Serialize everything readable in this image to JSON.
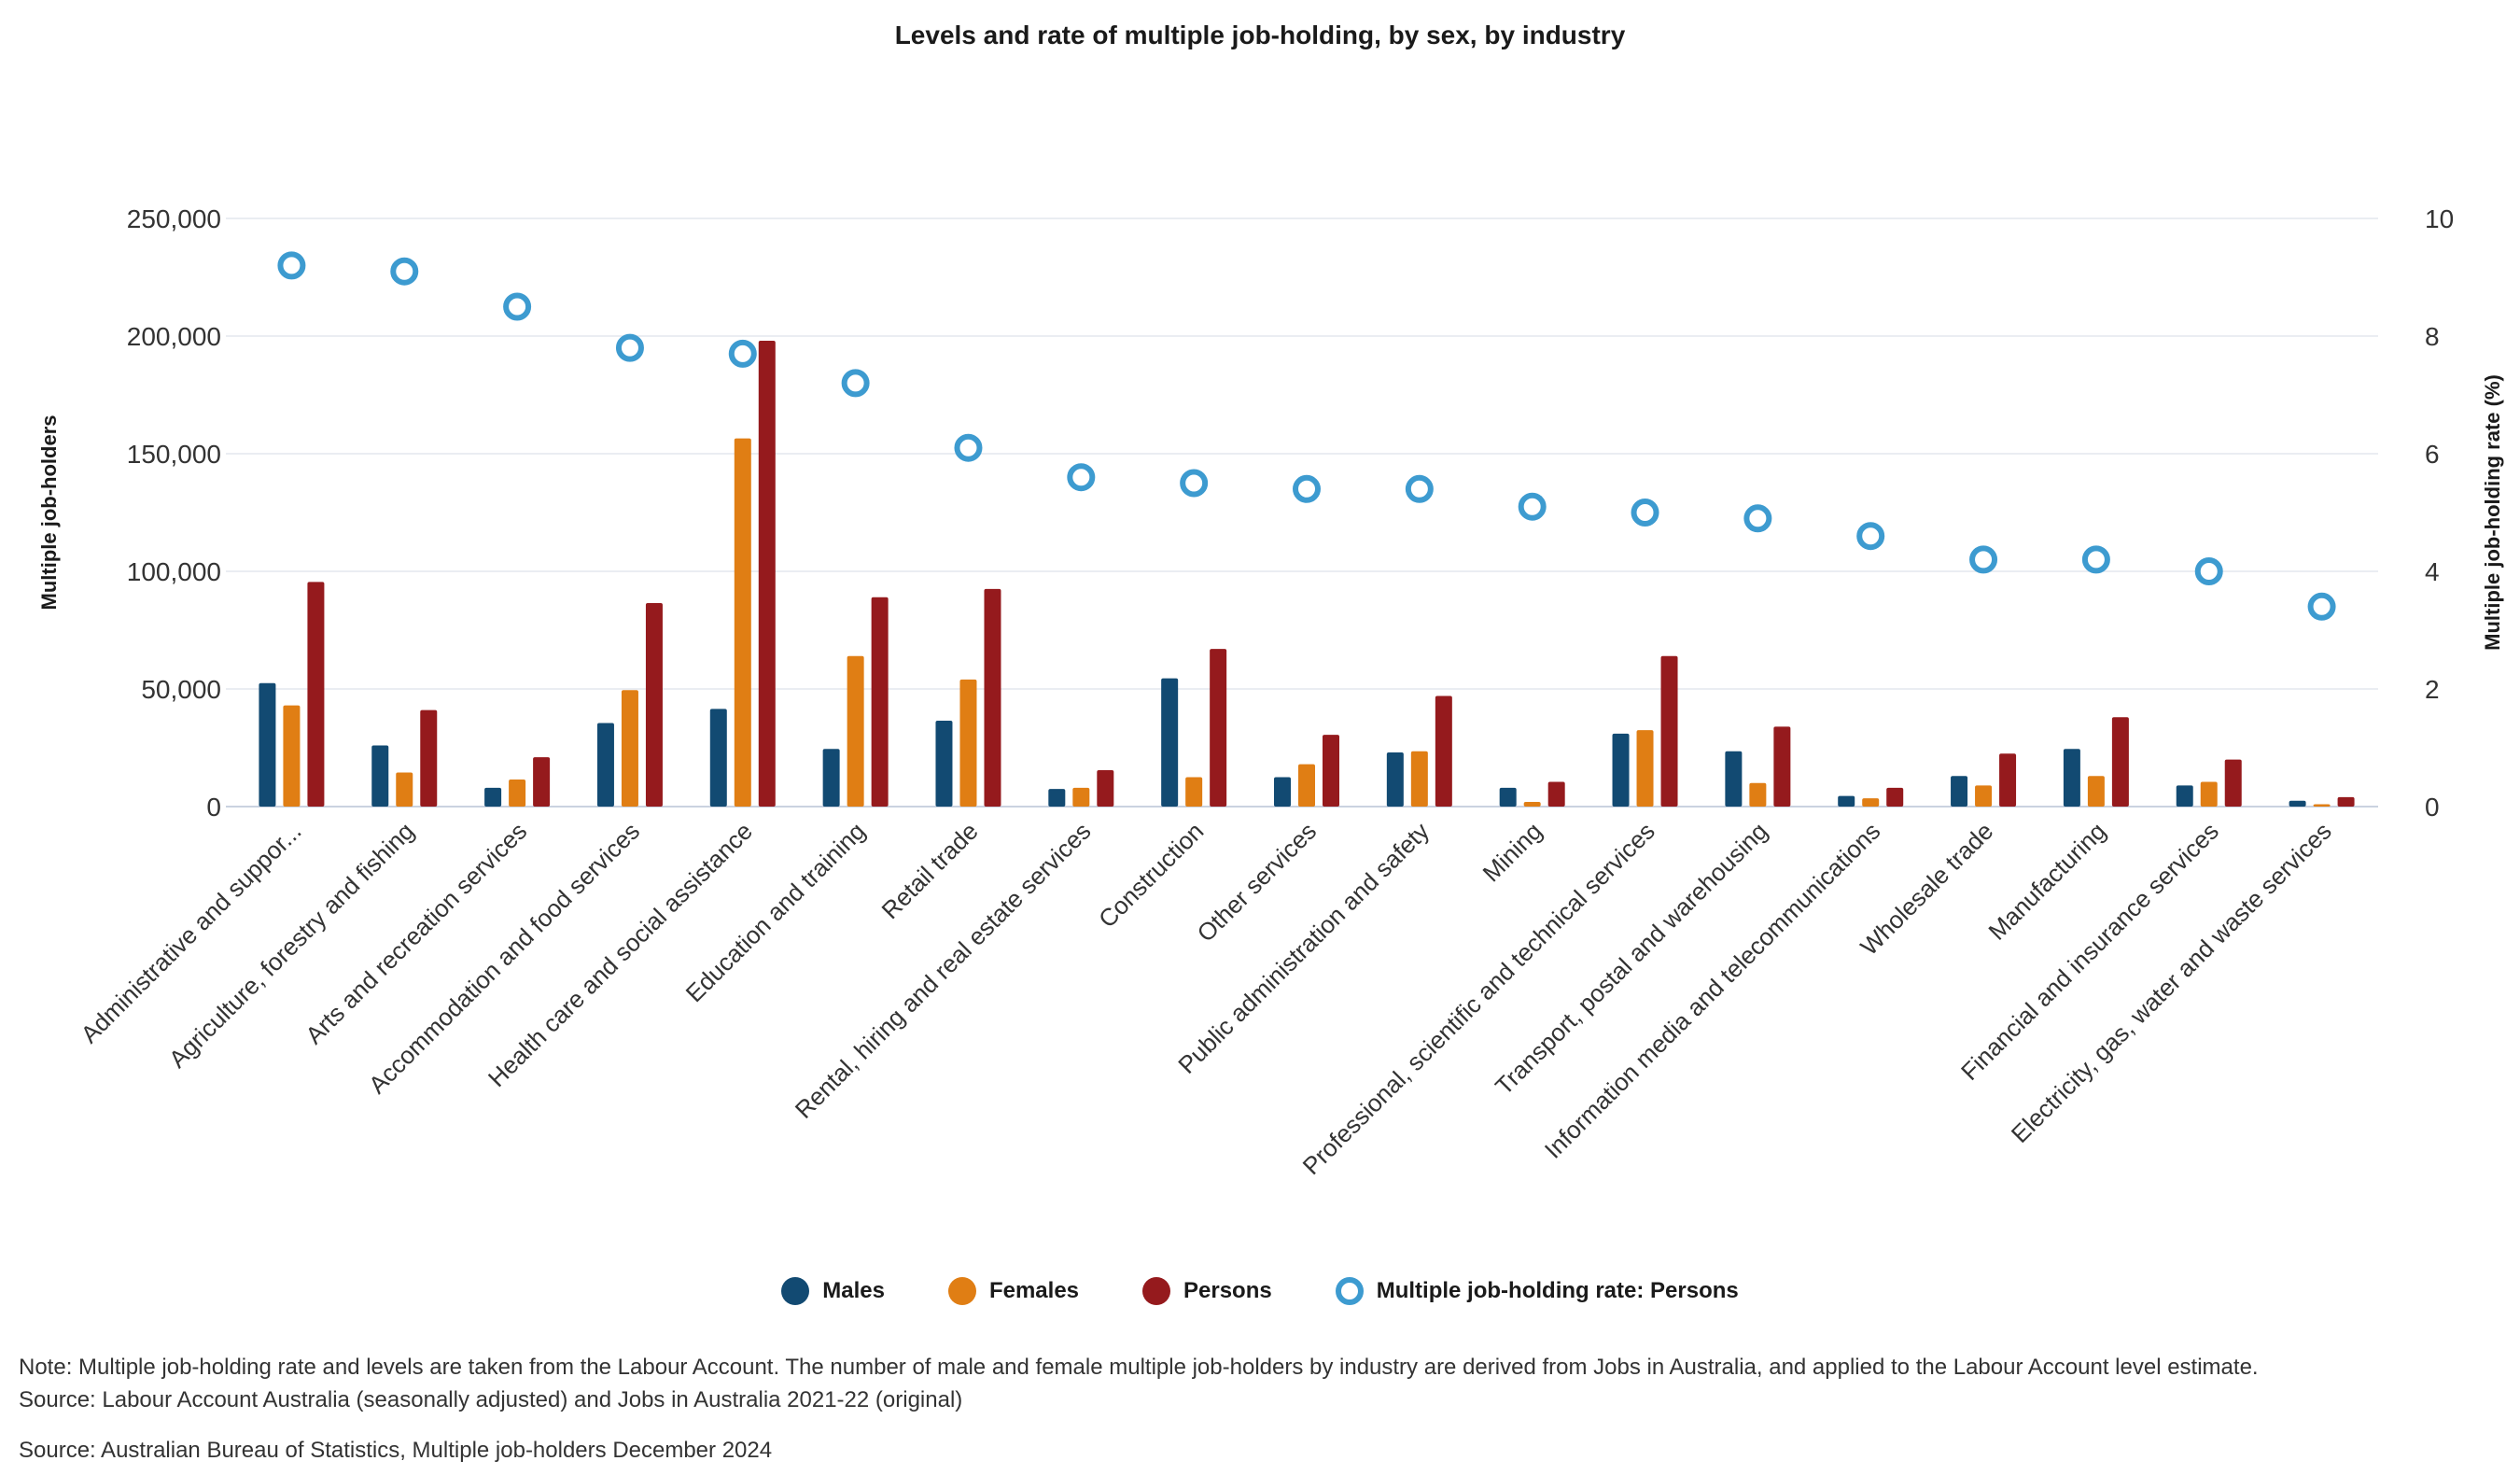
{
  "chart_data": {
    "type": "bar",
    "title": "Levels and rate of multiple job-holding, by sex, by industry",
    "ylabel": "Multiple job-holders",
    "y2label": "Multiple job-holding rate (%)",
    "ylim": [
      0,
      250000
    ],
    "y2lim": [
      0,
      10
    ],
    "yticks": [
      "0",
      "50,000",
      "100,000",
      "150,000",
      "200,000",
      "250,000"
    ],
    "y2ticks": [
      "0",
      "2",
      "4",
      "6",
      "8",
      "10"
    ],
    "grid": true,
    "legend_position": "bottom",
    "categories": [
      "Administrative and suppor...",
      "Agriculture, forestry and fishing",
      "Arts and recreation services",
      "Accommodation and food services",
      "Health care and social assistance",
      "Education and training",
      "Retail trade",
      "Rental, hiring and real estate services",
      "Construction",
      "Other services",
      "Public administration and safety",
      "Mining",
      "Professional, scientific and technical services",
      "Transport, postal and warehousing",
      "Information media and telecommunications",
      "Wholesale trade",
      "Manufacturing",
      "Financial and insurance services",
      "Electricity, gas, water and waste services"
    ],
    "series": [
      {
        "name": "Males",
        "type": "bar",
        "axis": "left",
        "color": "#124a72",
        "values": [
          52500,
          26000,
          8000,
          35500,
          41500,
          24500,
          36500,
          7500,
          54500,
          12500,
          23000,
          8000,
          31000,
          23500,
          4500,
          13000,
          24500,
          9000,
          2500
        ]
      },
      {
        "name": "Females",
        "type": "bar",
        "axis": "left",
        "color": "#e07e14",
        "values": [
          43000,
          14500,
          11500,
          49500,
          156500,
          64000,
          54000,
          8000,
          12500,
          18000,
          23500,
          2000,
          32500,
          10000,
          3500,
          9000,
          13000,
          10500,
          1000
        ]
      },
      {
        "name": "Persons",
        "type": "bar",
        "axis": "left",
        "color": "#951a1d",
        "values": [
          95500,
          41000,
          21000,
          86500,
          198000,
          89000,
          92500,
          15500,
          67000,
          30500,
          47000,
          10500,
          64000,
          34000,
          8000,
          22500,
          38000,
          20000,
          4000
        ]
      },
      {
        "name": "Multiple job-holding rate: Persons",
        "type": "scatter",
        "axis": "right",
        "color": "#3d9bd0",
        "values": [
          9.2,
          9.1,
          8.5,
          7.8,
          7.7,
          7.2,
          6.1,
          5.6,
          5.5,
          5.4,
          5.4,
          5.1,
          5.0,
          4.9,
          4.6,
          4.2,
          4.2,
          4.0,
          3.4
        ]
      }
    ]
  },
  "notes": {
    "line1": "Note: Multiple job-holding rate and levels are taken from the Labour Account. The number of male and female multiple job-holders by industry are derived from Jobs in Australia, and applied to the Labour Account level estimate.",
    "line2": "Source: Labour Account Australia (seasonally adjusted) and Jobs in Australia 2021-22 (original)"
  },
  "source": "Source: Australian Bureau of Statistics, Multiple job-holders December 2024"
}
